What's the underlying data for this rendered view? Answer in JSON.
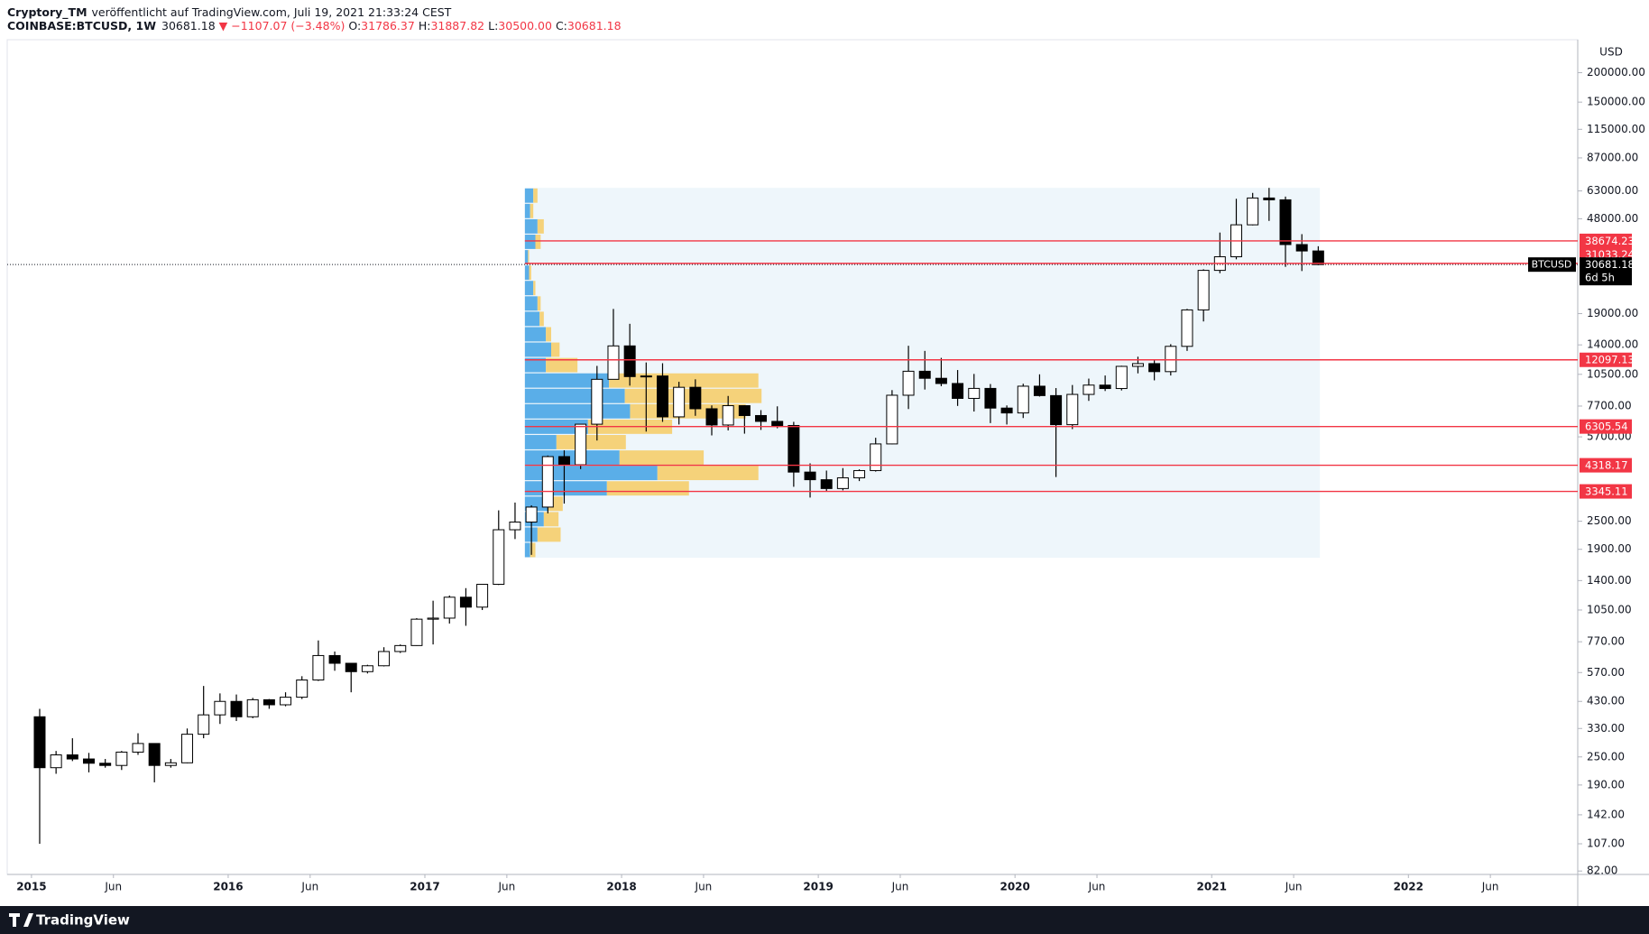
{
  "header": {
    "author": "Cryptory_TM",
    "published": "veröffentlicht auf TradingView.com, Juli 19, 2021 21:33:24 CEST",
    "symbol": "COINBASE:BTCUSD, 1W",
    "last": "30681.18",
    "change": "▼ −1107.07 (−3.48%)",
    "ohlc": [
      {
        "key": "O:",
        "value": "31786.37"
      },
      {
        "key": "H:",
        "value": "31887.82"
      },
      {
        "key": "L:",
        "value": "30500.00"
      },
      {
        "key": "C:",
        "value": "30681.18"
      }
    ]
  },
  "chart_data": {
    "type": "candlestick",
    "currency": "USD",
    "log_scale": true,
    "x": [
      0,
      1,
      2,
      3,
      4,
      5,
      6,
      7,
      8,
      9,
      10,
      11,
      12,
      13,
      14,
      15,
      16,
      17,
      18,
      19,
      20,
      21,
      22,
      23,
      24,
      25,
      26,
      27,
      28,
      29,
      30,
      31,
      32,
      33,
      34,
      35,
      36,
      37,
      38,
      39,
      40,
      41,
      42,
      43,
      44,
      45,
      46,
      47,
      48,
      49,
      50,
      51,
      52,
      53,
      54,
      55,
      56,
      57,
      58,
      59,
      60,
      61,
      62,
      63,
      64,
      65,
      66,
      67,
      68,
      69,
      70,
      71,
      72,
      73,
      74,
      75,
      76,
      77,
      78
    ],
    "xlim": [
      -1.48,
      94.33
    ],
    "xticks": [
      {
        "value": 0,
        "label": "2015"
      },
      {
        "value": 5,
        "label": "Jun"
      },
      {
        "value": 12,
        "label": "2016"
      },
      {
        "value": 17,
        "label": "Jun"
      },
      {
        "value": 24,
        "label": "2017"
      },
      {
        "value": 29,
        "label": "Jun"
      },
      {
        "value": 36,
        "label": "2018"
      },
      {
        "value": 41,
        "label": "Jun"
      },
      {
        "value": 48,
        "label": "2019"
      },
      {
        "value": 53,
        "label": "Jun"
      },
      {
        "value": 60,
        "label": "2020"
      },
      {
        "value": 65,
        "label": "Jun"
      },
      {
        "value": 72,
        "label": "2021"
      },
      {
        "value": 77,
        "label": "Jun"
      },
      {
        "value": 84,
        "label": "2022"
      },
      {
        "value": 89,
        "label": "Jun"
      }
    ],
    "ylim": [
      79.3,
      276000
    ],
    "yticks": [
      {
        "value": 200000,
        "label": "200000.00"
      },
      {
        "value": 150000,
        "label": "150000.00"
      },
      {
        "value": 115000,
        "label": "115000.00"
      },
      {
        "value": 87000,
        "label": "87000.00"
      },
      {
        "value": 63000,
        "label": "63000.00"
      },
      {
        "value": 48000,
        "label": "48000.00"
      },
      {
        "value": 19000,
        "label": "19000.00"
      },
      {
        "value": 14000,
        "label": "14000.00"
      },
      {
        "value": 10500,
        "label": "10500.00"
      },
      {
        "value": 7700,
        "label": "7700.00"
      },
      {
        "value": 5700,
        "label": "5700.00"
      },
      {
        "value": 2500,
        "label": "2500.00"
      },
      {
        "value": 1900,
        "label": "1900.00"
      },
      {
        "value": 1400,
        "label": "1400.00"
      },
      {
        "value": 1050,
        "label": "1050.00"
      },
      {
        "value": 770,
        "label": "770.00"
      },
      {
        "value": 570,
        "label": "570.00"
      },
      {
        "value": 430,
        "label": "430.00"
      },
      {
        "value": 330,
        "label": "330.00"
      },
      {
        "value": 250,
        "label": "250.00"
      },
      {
        "value": 190,
        "label": "190.00"
      },
      {
        "value": 142,
        "label": "142.00"
      },
      {
        "value": 107,
        "label": "107.00"
      },
      {
        "value": 82,
        "label": "82.00"
      }
    ],
    "series": [
      {
        "name": "BTCUSD",
        "up_color": "#ffffff",
        "down_color": "#000000",
        "open": [
          370,
          225,
          255,
          245,
          235,
          230,
          262,
          285,
          230,
          236,
          312,
          377,
          430,
          370,
          437,
          416,
          448,
          530,
          673,
          624,
          575,
          609,
          700,
          742,
          960,
          970,
          1190,
          1080,
          1350,
          2300,
          2480,
          2870,
          4700,
          4340,
          6450,
          10000,
          13860,
          10270,
          10330,
          6930,
          9250,
          7500,
          6400,
          7730,
          7020,
          6630,
          6370,
          4040,
          3750,
          3440,
          3820,
          4100,
          5320,
          8560,
          10820,
          10100,
          9600,
          8300,
          9150,
          7550,
          7200,
          9350,
          8530,
          6420,
          8630,
          9450,
          9140,
          11350,
          11660,
          10780,
          13800,
          19700,
          28990,
          33110,
          45240,
          58790,
          57750,
          37300,
          35040
        ],
        "high": [
          400,
          265,
          300,
          260,
          245,
          265,
          315,
          285,
          245,
          330,
          500,
          465,
          460,
          445,
          440,
          470,
          550,
          780,
          700,
          625,
          615,
          730,
          750,
          970,
          1150,
          1210,
          1300,
          1350,
          2780,
          3000,
          2920,
          4750,
          5000,
          6450,
          11400,
          19890,
          17200,
          11790,
          11700,
          9760,
          10000,
          7750,
          8500,
          7760,
          7400,
          7680,
          6600,
          4400,
          4100,
          4200,
          4150,
          5650,
          9000,
          13880,
          13200,
          12330,
          10950,
          10540,
          9550,
          7750,
          9580,
          10500,
          9180,
          9460,
          10070,
          10380,
          11420,
          12470,
          12070,
          14100,
          19900,
          29300,
          41950,
          58350,
          61790,
          64900,
          59600,
          41300,
          36700
        ],
        "low": [
          107,
          212,
          240,
          215,
          225,
          220,
          255,
          195,
          225,
          235,
          300,
          345,
          355,
          365,
          400,
          410,
          440,
          525,
          580,
          470,
          565,
          605,
          690,
          740,
          750,
          920,
          900,
          1050,
          1340,
          2100,
          1800,
          2700,
          2970,
          4160,
          5500,
          10000,
          9400,
          6000,
          6600,
          6430,
          7000,
          5780,
          6070,
          5880,
          6100,
          6200,
          3500,
          3150,
          3350,
          3380,
          3700,
          4060,
          5300,
          7480,
          9050,
          9350,
          7710,
          7300,
          6520,
          6430,
          6850,
          8450,
          3850,
          6150,
          8100,
          8920,
          8970,
          10600,
          9900,
          10380,
          13200,
          17600,
          28200,
          32300,
          45000,
          47000,
          30000,
          28800,
          30500
        ],
        "close": [
          225,
          255,
          245,
          235,
          230,
          262,
          285,
          230,
          236,
          312,
          377,
          430,
          370,
          437,
          416,
          448,
          530,
          673,
          624,
          575,
          609,
          700,
          742,
          960,
          970,
          1190,
          1080,
          1350,
          2300,
          2480,
          2870,
          4700,
          4340,
          6450,
          10000,
          13860,
          10270,
          10330,
          6930,
          9250,
          7500,
          6400,
          7730,
          7020,
          6630,
          6370,
          4040,
          3750,
          3440,
          3820,
          4100,
          5320,
          8560,
          10820,
          10100,
          9600,
          8300,
          9150,
          7550,
          7200,
          9350,
          8530,
          6420,
          8630,
          9450,
          9140,
          11350,
          11660,
          10780,
          13800,
          19700,
          28990,
          33110,
          45240,
          58790,
          57750,
          37300,
          35040,
          30681.18
        ]
      }
    ],
    "countdown": "6d 5h",
    "levels": [
      38674.23,
      31033.24,
      12097.13,
      6305.54,
      4318.17,
      3345.11
    ],
    "levels_color": "#f23645",
    "volume_profile": {
      "from": 30.1,
      "to": 78.6,
      "low": 1750,
      "high": 64900,
      "background": "#eef6fb",
      "up_color": "#5aaee8",
      "down_color": "#f5d27a",
      "up": [
        5,
        12,
        18,
        22,
        78,
        126,
        90,
        30,
        60,
        100,
        95,
        80,
        20,
        25,
        20,
        14,
        12,
        8,
        4,
        3,
        10,
        12,
        5,
        8
      ],
      "down": [
        5,
        22,
        14,
        14,
        78,
        96,
        80,
        66,
        80,
        110,
        130,
        142,
        30,
        8,
        5,
        4,
        3,
        2,
        2,
        1,
        5,
        6,
        3,
        4
      ]
    }
  },
  "footer": {
    "brand": "TradingView"
  }
}
